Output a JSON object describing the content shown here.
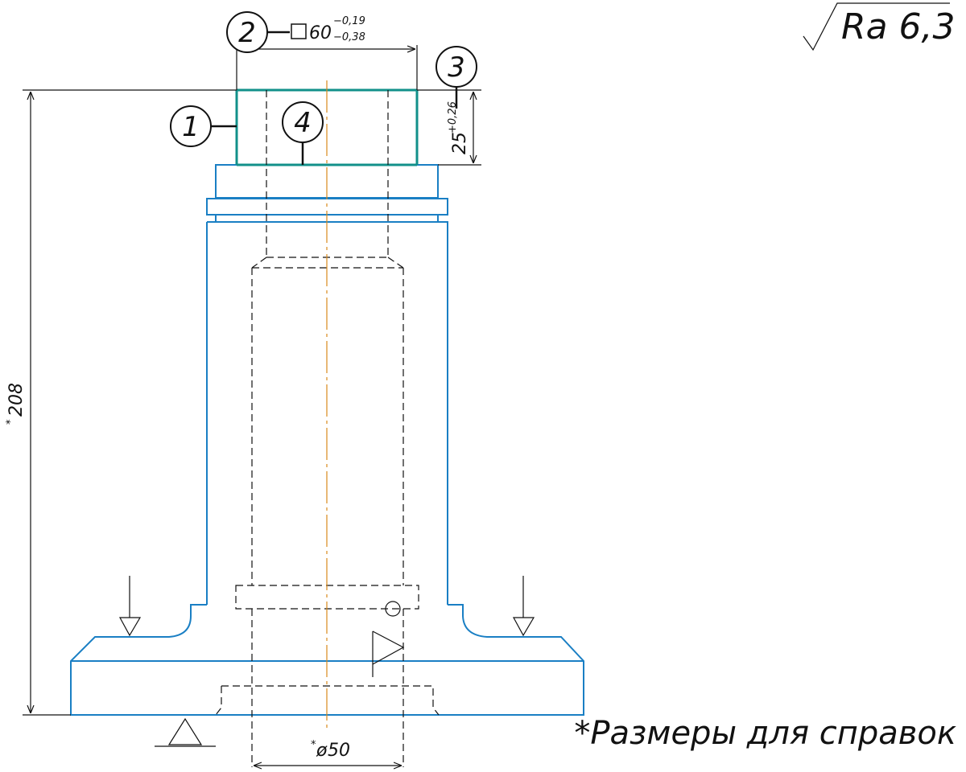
{
  "roughness": {
    "symbol": "√",
    "value": "Ra 6,3"
  },
  "callouts": [
    {
      "id": "1",
      "label": "1"
    },
    {
      "id": "2",
      "label": "2"
    },
    {
      "id": "3",
      "label": "3"
    },
    {
      "id": "4",
      "label": "4"
    }
  ],
  "dimensions": {
    "square": {
      "symbol": "□",
      "nominal": "60",
      "upper": "−0,19",
      "lower": "−0,38"
    },
    "depth": {
      "nominal": "25",
      "upper": "+0,26"
    },
    "height": {
      "star": "*",
      "value": "208"
    },
    "diameter": {
      "star": "*",
      "symbol": "ø",
      "value": "50"
    }
  },
  "note": "*Размеры для справок",
  "colors": {
    "part_outline": "#1a7fc4",
    "machined_surface": "#12908a",
    "axis": "#d98a1c",
    "lines": "#111111"
  }
}
